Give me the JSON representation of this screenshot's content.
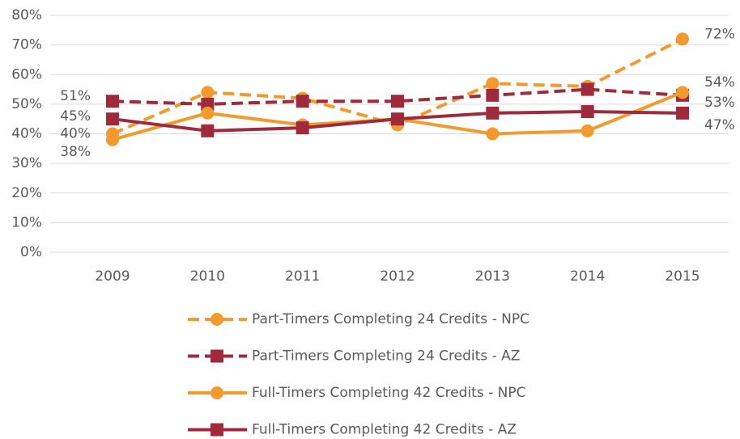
{
  "chart_data": {
    "type": "line",
    "categories": [
      "2009",
      "2010",
      "2011",
      "2012",
      "2013",
      "2014",
      "2015"
    ],
    "series": [
      {
        "name": "Part-Timers Completing 24 Credits - NPC",
        "color": "#f39a2e",
        "dashed": true,
        "marker": "circle",
        "values": [
          40,
          54,
          52,
          43,
          57,
          56,
          72
        ],
        "value_labels": [
          "40%",
          null,
          null,
          null,
          null,
          null,
          "72%"
        ]
      },
      {
        "name": "Part-Timers Completing 24 Credits - AZ",
        "color": "#9e2a3c",
        "dashed": true,
        "marker": "square",
        "values": [
          51,
          50,
          51,
          51,
          53,
          55,
          53
        ],
        "value_labels": [
          "51%",
          null,
          null,
          null,
          null,
          null,
          "53%"
        ]
      },
      {
        "name": "Full-Timers Completing 42 Credits - NPC",
        "color": "#f39a2e",
        "dashed": false,
        "marker": "circle",
        "values": [
          38,
          47,
          43,
          45,
          40,
          41,
          54
        ],
        "value_labels": [
          "38%",
          null,
          null,
          null,
          null,
          null,
          "54%"
        ]
      },
      {
        "name": "Full-Timers Completing 42 Credits - AZ",
        "color": "#9e2a3c",
        "dashed": false,
        "marker": "square",
        "values": [
          45,
          41,
          42,
          45,
          47,
          47.5,
          47
        ],
        "value_labels": [
          "45%",
          null,
          null,
          null,
          null,
          null,
          "47%"
        ]
      }
    ],
    "ylim": [
      0,
      80
    ],
    "yticks": [
      {
        "value": 0,
        "label": "0%"
      },
      {
        "value": 10,
        "label": "10%"
      },
      {
        "value": 20,
        "label": "20%"
      },
      {
        "value": 30,
        "label": "30%"
      },
      {
        "value": 40,
        "label": "40%"
      },
      {
        "value": 50,
        "label": "50%"
      },
      {
        "value": 60,
        "label": "60%"
      },
      {
        "value": 70,
        "label": "70%"
      },
      {
        "value": 80,
        "label": "80%"
      }
    ],
    "grid": true,
    "legend": "bottom"
  }
}
